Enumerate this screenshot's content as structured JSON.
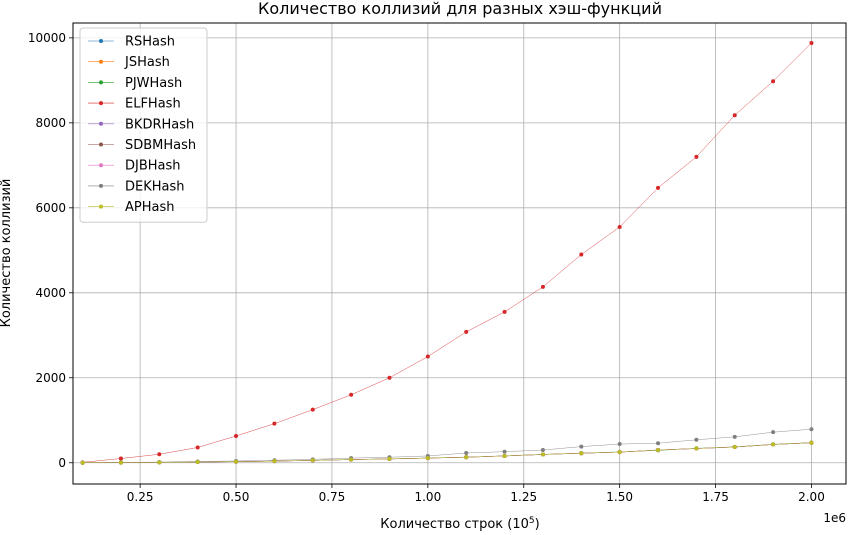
{
  "chart_data": {
    "type": "line",
    "title": "Количество коллизий для разных хэш-функций",
    "xlabel_main": "Количество строк (10",
    "xlabel_sup": "5",
    "xlabel_close": ")",
    "ylabel": "Количество коллизий",
    "x_offset_label": "1e6",
    "xlim": [
      75000,
      2090000
    ],
    "ylim": [
      -500,
      10350
    ],
    "x_ticks": [
      250000,
      500000,
      750000,
      1000000,
      1250000,
      1500000,
      1750000,
      2000000
    ],
    "x_tick_labels": [
      "0.25",
      "0.50",
      "0.75",
      "1.00",
      "1.25",
      "1.50",
      "1.75",
      "2.00"
    ],
    "y_ticks": [
      0,
      2000,
      4000,
      6000,
      8000,
      10000
    ],
    "y_tick_labels": [
      "0",
      "2000",
      "4000",
      "6000",
      "8000",
      "10000"
    ],
    "grid": true,
    "legend_position": "top-left",
    "x": [
      100000,
      200000,
      300000,
      400000,
      500000,
      600000,
      700000,
      800000,
      900000,
      1000000,
      1100000,
      1200000,
      1300000,
      1400000,
      1500000,
      1600000,
      1700000,
      1800000,
      1900000,
      2000000
    ],
    "series": [
      {
        "name": "RSHash",
        "color": "#1f77b4",
        "values": [
          1,
          4,
          10,
          17,
          25,
          38,
          55,
          75,
          90,
          110,
          130,
          160,
          195,
          225,
          250,
          300,
          335,
          370,
          430,
          470
        ]
      },
      {
        "name": "JSHash",
        "color": "#ff7f0e",
        "values": [
          1,
          4,
          10,
          17,
          25,
          38,
          55,
          75,
          90,
          110,
          130,
          160,
          195,
          225,
          250,
          300,
          335,
          370,
          430,
          470
        ]
      },
      {
        "name": "PJWHash",
        "color": "#2ca02c",
        "values": [
          1,
          5,
          11,
          18,
          27,
          40,
          57,
          77,
          92,
          113,
          133,
          163,
          198,
          228,
          255,
          290,
          340,
          375,
          435,
          475
        ]
      },
      {
        "name": "ELFHash",
        "color": "#d62728",
        "values": [
          10,
          100,
          200,
          360,
          630,
          920,
          1250,
          1600,
          2000,
          2500,
          3080,
          3550,
          4140,
          4900,
          5550,
          6470,
          7200,
          8180,
          8980,
          9880
        ]
      },
      {
        "name": "BKDRHash",
        "color": "#9467bd",
        "values": [
          1,
          4,
          10,
          17,
          25,
          38,
          55,
          75,
          90,
          110,
          130,
          160,
          195,
          225,
          250,
          300,
          335,
          370,
          430,
          470
        ]
      },
      {
        "name": "SDBMHash",
        "color": "#8c564b",
        "values": [
          1,
          4,
          10,
          17,
          25,
          38,
          55,
          75,
          90,
          110,
          130,
          160,
          195,
          225,
          250,
          300,
          335,
          370,
          430,
          470
        ]
      },
      {
        "name": "DJBHash",
        "color": "#e377c2",
        "values": [
          1,
          4,
          10,
          17,
          25,
          38,
          55,
          75,
          90,
          110,
          130,
          160,
          195,
          225,
          250,
          300,
          335,
          370,
          430,
          470
        ]
      },
      {
        "name": "DEKHash",
        "color": "#7f7f7f",
        "values": [
          2,
          8,
          16,
          30,
          42,
          60,
          80,
          110,
          130,
          160,
          230,
          260,
          300,
          380,
          440,
          460,
          540,
          610,
          720,
          790
        ]
      },
      {
        "name": "APHash",
        "color": "#bcbd22",
        "values": [
          1,
          4,
          10,
          17,
          25,
          38,
          55,
          75,
          90,
          110,
          130,
          160,
          195,
          225,
          250,
          300,
          335,
          370,
          430,
          470
        ]
      }
    ]
  }
}
